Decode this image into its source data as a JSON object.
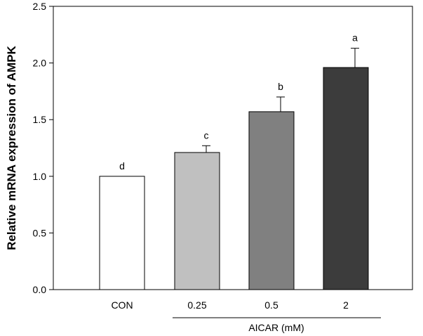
{
  "chart_data": {
    "type": "bar",
    "ylabel": "Relative mRNA expression of AMPK",
    "ylim": [
      0,
      2.5
    ],
    "yticks": [
      0.0,
      0.5,
      1.0,
      1.5,
      2.0,
      2.5
    ],
    "ytick_labels": [
      "0.0",
      "0.5",
      "1.0",
      "1.5",
      "2.0",
      "2.5"
    ],
    "categories": [
      "CON",
      "0.25",
      "0.5",
      "2"
    ],
    "values": [
      1.0,
      1.21,
      1.57,
      1.96
    ],
    "errors": [
      0.0,
      0.06,
      0.13,
      0.17
    ],
    "significance": [
      "d",
      "c",
      "b",
      "a"
    ],
    "colors": [
      "#ffffff",
      "#c0c0c0",
      "#808080",
      "#3c3c3c"
    ],
    "group_label": "AICAR (mM)",
    "grid": false,
    "legend": "none"
  }
}
